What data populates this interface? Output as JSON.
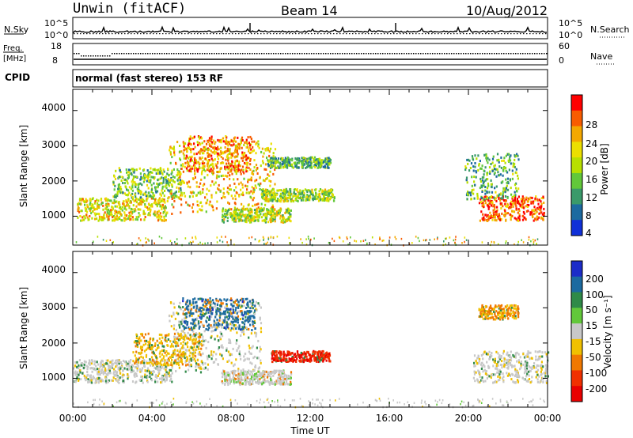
{
  "header": {
    "station": "Unwin (fitACF)",
    "beam": "Beam 14",
    "date": "10/Aug/2012"
  },
  "noise_panel": {
    "left_label": "N.Sky",
    "right_label": "N.Search",
    "left_ticks": [
      "10^5",
      "10^0"
    ],
    "right_ticks": [
      "10^5",
      "10^0"
    ]
  },
  "freq_panel": {
    "left_label_1": "Freq.",
    "left_label_2": "[MHz]",
    "right_label": "Nave",
    "left_ticks": [
      "18",
      "8"
    ],
    "right_ticks": [
      "60",
      "0"
    ]
  },
  "cpid": {
    "label": "CPID",
    "value": "normal (fast stereo) 153 RF"
  },
  "power_panel": {
    "ylabel": "Slant Range [km]",
    "yticks": [
      "4000",
      "3000",
      "2000",
      "1000"
    ],
    "colorbar_title": "Power [dB]",
    "colorbar_ticks": [
      "28",
      "24",
      "20",
      "16",
      "12",
      "8",
      "4"
    ],
    "colorbar_colors": [
      "#ff0000",
      "#f85c00",
      "#f4a800",
      "#ecdf00",
      "#b8e000",
      "#62c83a",
      "#3a9a6a",
      "#1c6aa0",
      "#1030d8"
    ]
  },
  "velocity_panel": {
    "ylabel": "Slant Range [km]",
    "yticks": [
      "4000",
      "3000",
      "2000",
      "1000"
    ],
    "colorbar_title": "Velocity [m s⁻¹]",
    "colorbar_ticks": [
      "200",
      "100",
      "50",
      "15",
      "-15",
      "-50",
      "-100",
      "-200"
    ],
    "colorbar_colors": [
      "#1c2cc8",
      "#1c6aa0",
      "#2f8a48",
      "#62c83a",
      "#c8c8c8",
      "#f0c000",
      "#f07800",
      "#f03000",
      "#e80000"
    ]
  },
  "x_axis": {
    "label": "Time UT",
    "ticks": [
      "00:00",
      "04:00",
      "08:00",
      "12:00",
      "16:00",
      "20:00",
      "00:00"
    ]
  },
  "chart_data": [
    {
      "type": "heatmap",
      "title": "Power [dB]",
      "xlabel": "Time UT",
      "ylabel": "Slant Range [km]",
      "xlim": [
        0,
        24
      ],
      "ylim": [
        180,
        4600
      ],
      "clim": [
        0,
        30
      ],
      "echo_regions": [
        {
          "t": [
            0.2,
            4.8
          ],
          "range": [
            900,
            1550
          ],
          "power": 18
        },
        {
          "t": [
            2.0,
            5.5
          ],
          "range": [
            1550,
            2400
          ],
          "power": 12
        },
        {
          "t": [
            4.8,
            10.2
          ],
          "range": [
            1100,
            3200
          ],
          "power": 20
        },
        {
          "t": [
            5.5,
            9.0
          ],
          "range": [
            2300,
            3300
          ],
          "power": 24
        },
        {
          "t": [
            7.5,
            11.0
          ],
          "range": [
            850,
            1250
          ],
          "power": 16
        },
        {
          "t": [
            9.5,
            13.2
          ],
          "range": [
            1450,
            1800
          ],
          "power": 14
        },
        {
          "t": [
            9.8,
            13.0
          ],
          "range": [
            2400,
            2700
          ],
          "power": 10
        },
        {
          "t": [
            20.5,
            23.8
          ],
          "range": [
            900,
            1600
          ],
          "power": 26
        },
        {
          "t": [
            19.8,
            22.5
          ],
          "range": [
            1500,
            2800
          ],
          "power": 10
        }
      ]
    },
    {
      "type": "heatmap",
      "title": "Velocity [m s⁻¹]",
      "xlabel": "Time UT",
      "ylabel": "Slant Range [km]",
      "xlim": [
        0,
        24
      ],
      "ylim": [
        180,
        4600
      ],
      "clim": [
        -200,
        200
      ],
      "echo_regions": [
        {
          "t": [
            0.0,
            5.0
          ],
          "range": [
            900,
            1550
          ],
          "velocity": -5
        },
        {
          "t": [
            4.8,
            9.5
          ],
          "range": [
            1200,
            3200
          ],
          "velocity": -10
        },
        {
          "t": [
            5.5,
            9.2
          ],
          "range": [
            2400,
            3300
          ],
          "velocity": 150
        },
        {
          "t": [
            3.0,
            6.5
          ],
          "range": [
            1400,
            2300
          ],
          "velocity": -60
        },
        {
          "t": [
            10.0,
            13.0
          ],
          "range": [
            1500,
            1800
          ],
          "velocity": -170
        },
        {
          "t": [
            7.5,
            11.0
          ],
          "range": [
            850,
            1250
          ],
          "velocity": 5
        },
        {
          "t": [
            20.2,
            24.0
          ],
          "range": [
            900,
            1800
          ],
          "velocity": -5
        },
        {
          "t": [
            20.5,
            22.5
          ],
          "range": [
            2700,
            3100
          ],
          "velocity": -80
        }
      ]
    }
  ]
}
